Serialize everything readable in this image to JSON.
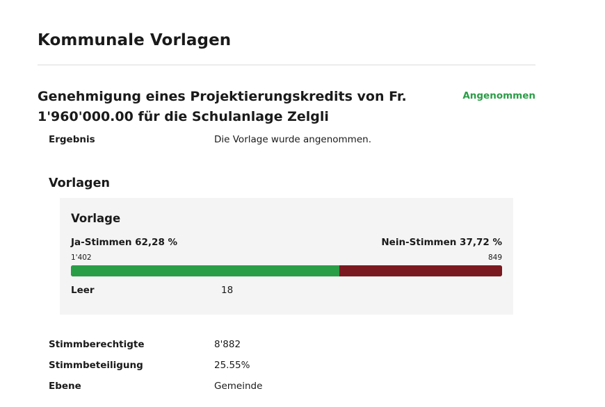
{
  "page": {
    "title": "Kommunale Vorlagen"
  },
  "proposal": {
    "title": "Genehmigung eines Projektierungskredits von Fr. 1'960'000.00 für die Schulanlage Zelgli",
    "status": "Angenommen",
    "result_label": "Ergebnis",
    "result_value": "Die Vorlage wurde angenommen."
  },
  "vorlagen": {
    "section_title": "Vorlagen",
    "card": {
      "title": "Vorlage",
      "yes_label": "Ja-Stimmen 62,28 %",
      "no_label": "Nein-Stimmen 37,72 %",
      "yes_count": "1'402",
      "no_count": "849",
      "yes_percent": 62.28,
      "no_percent": 37.72,
      "blank_label": "Leer",
      "blank_value": "18"
    }
  },
  "details": {
    "eligible_label": "Stimmberechtigte",
    "eligible_value": "8'882",
    "turnout_label": "Stimmbeteiligung",
    "turnout_value": "25.55%",
    "level_label": "Ebene",
    "level_value": "Gemeinde"
  },
  "colors": {
    "yes": "#2a9d47",
    "no": "#7a1a20",
    "status": "#2a9d47",
    "card_background": "#f4f4f4"
  }
}
